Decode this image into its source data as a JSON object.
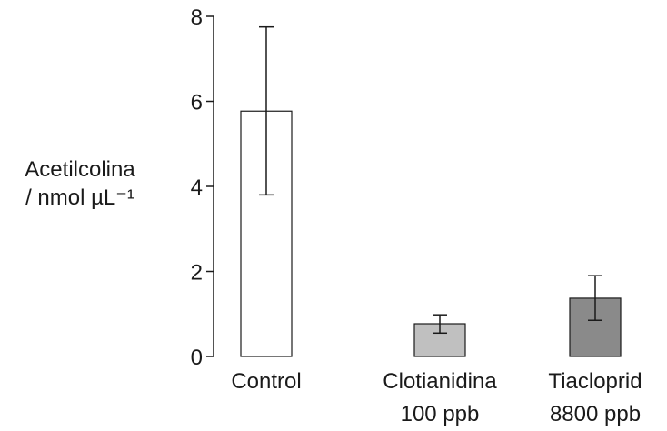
{
  "chart_data": {
    "type": "bar",
    "title": "",
    "xlabel": "",
    "ylabel": [
      "Acetilcolina",
      "/ nmol µL⁻¹"
    ],
    "ylim": [
      0,
      8
    ],
    "yticks": [
      "0",
      "2",
      "4",
      "6",
      "8"
    ],
    "grid": false,
    "legend": "none",
    "categories": [
      [
        "Control"
      ],
      [
        "Clotianidina",
        "100 ppb"
      ],
      [
        "Tiacloprid",
        "8800 ppb"
      ]
    ],
    "values": [
      5.77,
      0.77,
      1.37
    ],
    "error_low": [
      3.8,
      0.55,
      0.85
    ],
    "error_high": [
      7.75,
      0.98,
      1.9
    ],
    "bar_colors": [
      "#ffffff",
      "#c0c0c0",
      "#8a8a8a"
    ],
    "axis_color": "#1a1a1a"
  }
}
